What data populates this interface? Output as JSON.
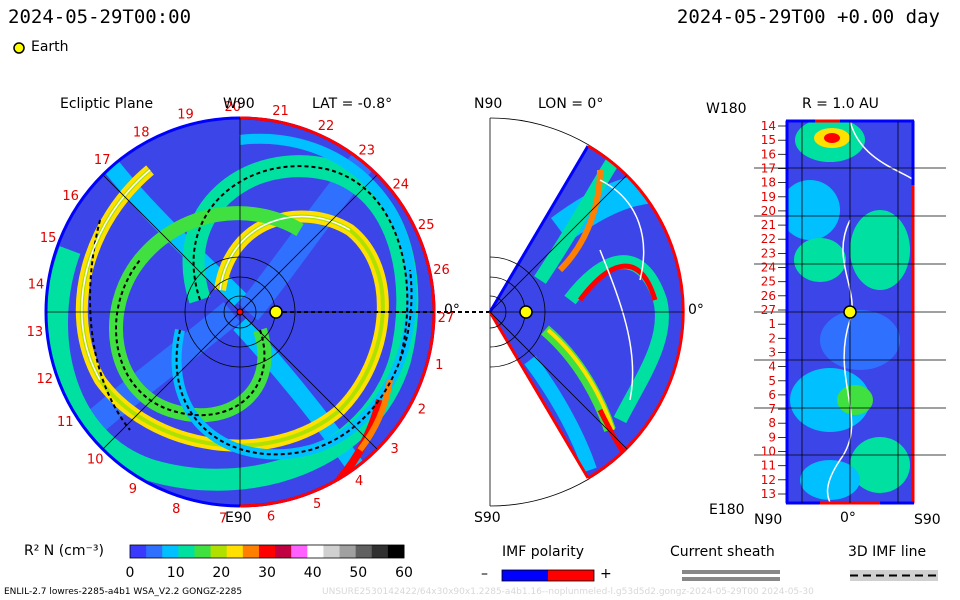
{
  "header": {
    "left_timestamp": "2024-05-29T00:00",
    "right_timestamp": "2024-05-29T00 +0.00 day"
  },
  "legend": {
    "earth_label": "Earth",
    "earth_color": "#ffff00"
  },
  "panels": {
    "ecliptic": {
      "title": "Ecliptic Plane",
      "top_label": "W90",
      "bottom_label": "E90",
      "lat_label": "LAT = -0.8°",
      "right_label": "0°",
      "carrington_numbers": [
        "20",
        "21",
        "22",
        "23",
        "24",
        "25",
        "26",
        "27",
        "1",
        "2",
        "3",
        "4",
        "5",
        "6",
        "7",
        "8",
        "9",
        "10",
        "11",
        "12",
        "13",
        "14",
        "15",
        "16",
        "17",
        "18",
        "19"
      ]
    },
    "meridional": {
      "top_label": "N90",
      "bottom_label": "S90",
      "lon_label": "LON = 0°",
      "right_label": "0°"
    },
    "lat_lon": {
      "top_left_label": "W180",
      "bottom_left_label": "E180",
      "r_label": "R = 1.0 AU",
      "row_labels": [
        "14",
        "15",
        "16",
        "17",
        "18",
        "19",
        "20",
        "21",
        "22",
        "23",
        "24",
        "25",
        "26",
        "27",
        "1",
        "2",
        "3",
        "4",
        "5",
        "6",
        "7",
        "8",
        "9",
        "10",
        "11",
        "12",
        "13"
      ],
      "x_labels": [
        "N90",
        "0°",
        "S90"
      ]
    }
  },
  "colorbar": {
    "label": "R² N (cm⁻³)",
    "ticks": [
      "0",
      "10",
      "20",
      "30",
      "40",
      "50",
      "60"
    ],
    "range": [
      0,
      60
    ],
    "colors": [
      "#3a3aff",
      "#3070ff",
      "#00c0ff",
      "#00e0a0",
      "#40e040",
      "#b0e000",
      "#ffe000",
      "#ff8000",
      "#ff0000",
      "#c00040",
      "#ff60ff",
      "#ffffff",
      "#d0d0d0",
      "#a0a0a0",
      "#606060",
      "#303030",
      "#000000"
    ]
  },
  "imf_polarity": {
    "title": "IMF polarity",
    "minus": "–",
    "plus": "+",
    "neg_color": "#0000ff",
    "pos_color": "#ff0000"
  },
  "current_sheath": {
    "title": "Current sheath"
  },
  "imf_line": {
    "title": "3D IMF line"
  },
  "footer": {
    "left": "ENLIL-2.7 lowres-2285-a4b1 WSA_V2.2 GONGZ-2285",
    "right": "UNSURE2530142422/64x30x90x1.2285-a4b1.16--noplunmeled-l.g53d5d2.gongz-2024-05-29T00    2024-05-30"
  }
}
